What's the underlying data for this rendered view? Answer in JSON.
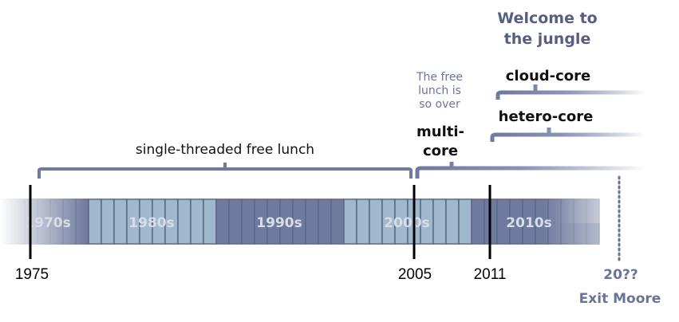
{
  "title": {
    "line1": "Welcome to",
    "line2": "the jungle"
  },
  "note": {
    "line1": "The free",
    "line2": "lunch is",
    "line3": "so over"
  },
  "eras": {
    "single": "single-threaded free lunch",
    "multi_line1": "multi-",
    "multi_line2": "core",
    "hetero": "hetero-core",
    "cloud": "cloud-core"
  },
  "decades": [
    "1970s",
    "1980s",
    "1990s",
    "2000s",
    "2010s"
  ],
  "years": {
    "y1975": "1975",
    "y2005": "2005",
    "y2011": "2011",
    "future": "20??"
  },
  "exit_label": "Exit Moore",
  "colors": {
    "dark": "#6e7a9e",
    "light": "#a0b8cc",
    "border": "#5b6885",
    "bracket": "#6e7a9e"
  }
}
